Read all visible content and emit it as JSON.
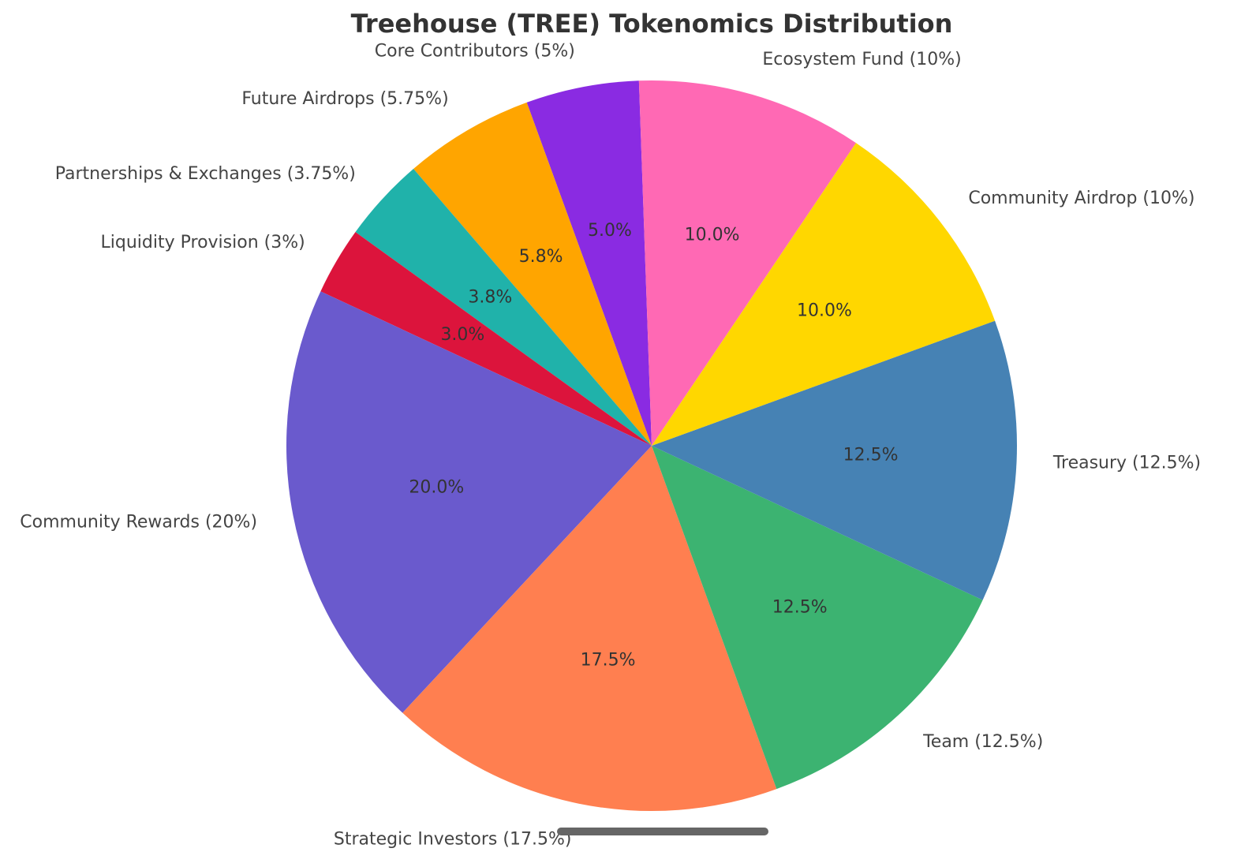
{
  "chart_data": {
    "type": "pie",
    "title": "Treehouse (TREE) Tokenomics Distribution",
    "start_angle_deg": 92,
    "direction": "counterclockwise",
    "slices": [
      {
        "label": "Core Contributors (5%)",
        "value": 5,
        "pct_label": "5.0%",
        "color": "#8A2BE2"
      },
      {
        "label": "Future Airdrops (5.75%)",
        "value": 5.75,
        "pct_label": "5.8%",
        "color": "#FFA500"
      },
      {
        "label": "Partnerships & Exchanges (3.75%)",
        "value": 3.75,
        "pct_label": "3.8%",
        "color": "#20B2AA"
      },
      {
        "label": "Liquidity Provision (3%)",
        "value": 3,
        "pct_label": "3.0%",
        "color": "#DC143C"
      },
      {
        "label": "Community Rewards (20%)",
        "value": 20,
        "pct_label": "20.0%",
        "color": "#6A5ACD"
      },
      {
        "label": "Strategic Investors (17.5%)",
        "value": 17.5,
        "pct_label": "17.5%",
        "color": "#FF7F50"
      },
      {
        "label": "Team (12.5%)",
        "value": 12.5,
        "pct_label": "12.5%",
        "color": "#3CB371"
      },
      {
        "label": "Treasury (12.5%)",
        "value": 12.5,
        "pct_label": "12.5%",
        "color": "#4682B4"
      },
      {
        "label": "Community Airdrop (10%)",
        "value": 10,
        "pct_label": "10.0%",
        "color": "#FFD700"
      },
      {
        "label": "Ecosystem Fund (10%)",
        "value": 10,
        "pct_label": "10.0%",
        "color": "#FF69B4"
      }
    ]
  }
}
